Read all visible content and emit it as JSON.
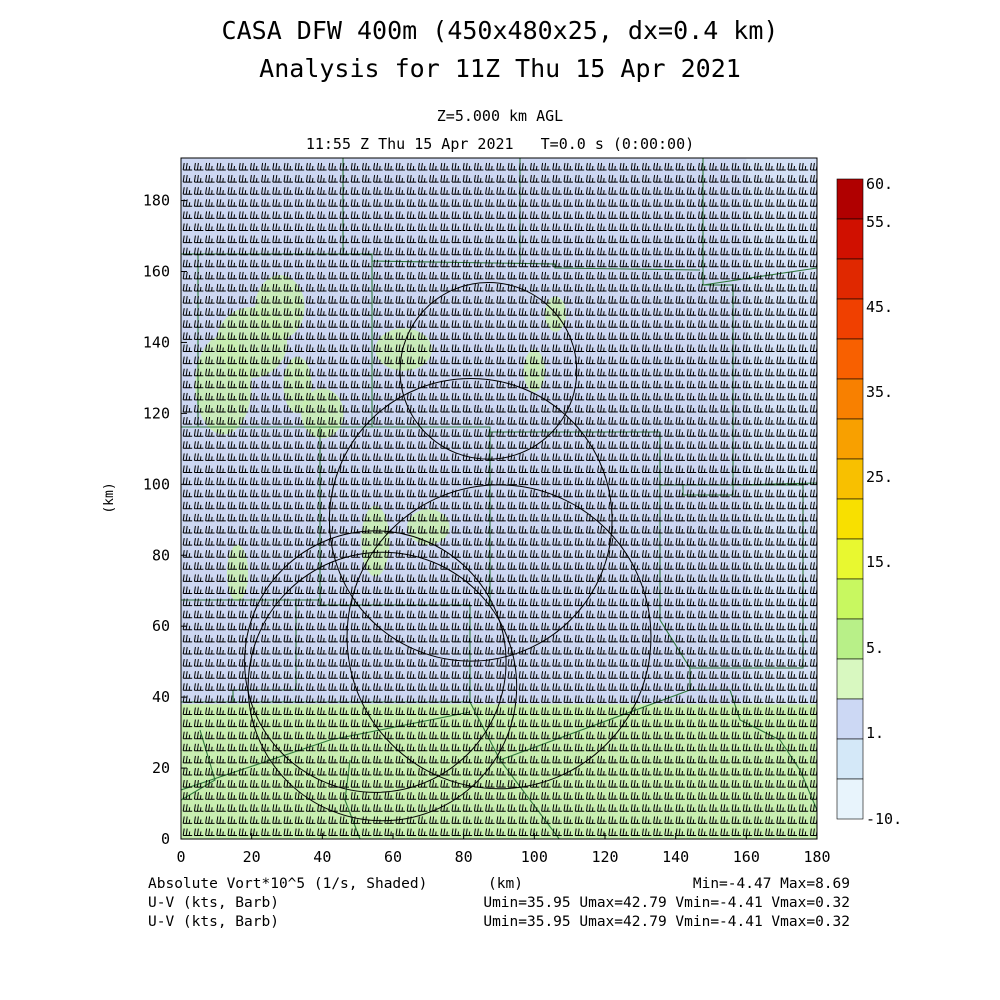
{
  "header": {
    "title_line1": "CASA DFW 400m (450x480x25, dx=0.4 km)",
    "title_line2": "Analysis for 11Z Thu 15 Apr 2021",
    "level": "Z=5.000 km AGL",
    "time": "11:55 Z Thu 15 Apr 2021   T=0.0 s (0:00:00)"
  },
  "chart_data": {
    "type": "heatmap",
    "title": "CASA DFW 400m (450x480x25, dx=0.4 km)",
    "xlabel": "(km)",
    "ylabel": "(km)",
    "xlim": [
      0,
      180
    ],
    "ylim": [
      0,
      192
    ],
    "x_ticks": [
      "0",
      "20",
      "40",
      "60",
      "80",
      "100",
      "120",
      "140",
      "160",
      "180"
    ],
    "y_ticks": [
      "0",
      "20",
      "40",
      "60",
      "80",
      "100",
      "120",
      "140",
      "160",
      "180"
    ],
    "field": "Absolute Vort*10^5 (1/s, Shaded)",
    "vector_field": "U-V (kts, Barb)",
    "colorbar": {
      "labels": [
        "60.",
        "55.",
        "45.",
        "35.",
        "25.",
        "15.",
        "5.",
        "1.",
        "-10."
      ],
      "colors": [
        "#b00000",
        "#d01000",
        "#e02800",
        "#f04000",
        "#f86000",
        "#f88000",
        "#f8a000",
        "#f8c000",
        "#f8e000",
        "#e8f830",
        "#c8f860",
        "#b8f088",
        "#d8f8c0",
        "#ccd8f4",
        "#d4e8f8",
        "#e8f4fc"
      ]
    },
    "regions": [
      {
        "desc": "upper domain light blue",
        "x": [
          0,
          180
        ],
        "y": [
          38,
          192
        ],
        "value_class": "1 to 5"
      },
      {
        "desc": "lower domain light green",
        "x": [
          0,
          180
        ],
        "y": [
          0,
          38
        ],
        "value_class": "5 to 10"
      },
      {
        "desc": "northwest green patches",
        "x": [
          0,
          45
        ],
        "y": [
          115,
          165
        ],
        "value_class": "5 to 10"
      }
    ],
    "range_rings": [
      {
        "cx": 87,
        "cy": 132,
        "r": 25
      },
      {
        "cx": 82,
        "cy": 90,
        "r": 40
      },
      {
        "cx": 90,
        "cy": 57,
        "r": 43
      },
      {
        "cx": 55,
        "cy": 50,
        "r": 37
      },
      {
        "cx": 57,
        "cy": 43,
        "r": 38
      }
    ],
    "stats": {
      "minmax": "Min=-4.47 Max=8.69",
      "uv": "Umin=35.95 Umax=42.79 Vmin=-4.41 Vmax=0.32"
    }
  },
  "footer": {
    "field_label": "Absolute Vort*10^5 (1/s, Shaded)",
    "xunit": "(km)",
    "minmax": "Min=-4.47 Max=8.69",
    "vec1_label": "U-V (kts, Barb)",
    "vec1_stats": "Umin=35.95 Umax=42.79 Vmin=-4.41 Vmax=0.32",
    "vec2_label": "U-V (kts, Barb)",
    "vec2_stats": "Umin=35.95 Umax=42.79 Vmin=-4.41 Vmax=0.32"
  }
}
